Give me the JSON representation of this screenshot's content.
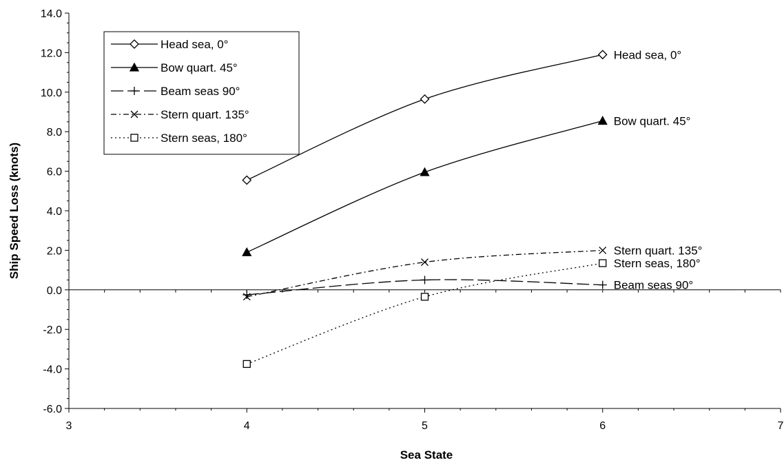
{
  "chart_data": {
    "type": "line",
    "xlabel": "Sea State",
    "ylabel": "Ship Speed Loss (knots)",
    "xlim": [
      3,
      7
    ],
    "ylim": [
      -6,
      14
    ],
    "xticks": [
      "3",
      "4",
      "5",
      "6",
      "7"
    ],
    "yticks": [
      "-6.0",
      "-4.0",
      "-2.0",
      "0.0",
      "2.0",
      "4.0",
      "6.0",
      "8.0",
      "10.0",
      "12.0",
      "14.0"
    ],
    "legend_position": "top-left",
    "grid": false,
    "series": [
      {
        "name": "Head sea, 0°",
        "end_label": "Head sea, 0°",
        "marker": "diamond",
        "dash": "solid",
        "x": [
          4,
          5,
          6
        ],
        "values": [
          5.55,
          9.65,
          11.9
        ]
      },
      {
        "name": "Bow quart. 45°",
        "end_label": "Bow quart. 45°",
        "marker": "triangle",
        "dash": "solid",
        "x": [
          4,
          5,
          6
        ],
        "values": [
          1.9,
          5.95,
          8.55
        ]
      },
      {
        "name": "Beam seas 90°",
        "end_label": "Beam seas 90°",
        "marker": "plus",
        "dash": "long-dash",
        "x": [
          4,
          5,
          6
        ],
        "values": [
          -0.25,
          0.5,
          0.25
        ]
      },
      {
        "name": "Stern quart. 135°",
        "end_label": "Stern quart. 135°",
        "marker": "x",
        "dash": "dash-dot",
        "x": [
          4,
          5,
          6
        ],
        "values": [
          -0.35,
          1.4,
          2.0
        ]
      },
      {
        "name": "Stern seas, 180°",
        "end_label": "Stern seas, 180°",
        "marker": "square",
        "dash": "dotted",
        "x": [
          4,
          5,
          6
        ],
        "values": [
          -3.75,
          -0.35,
          1.35
        ]
      }
    ]
  }
}
